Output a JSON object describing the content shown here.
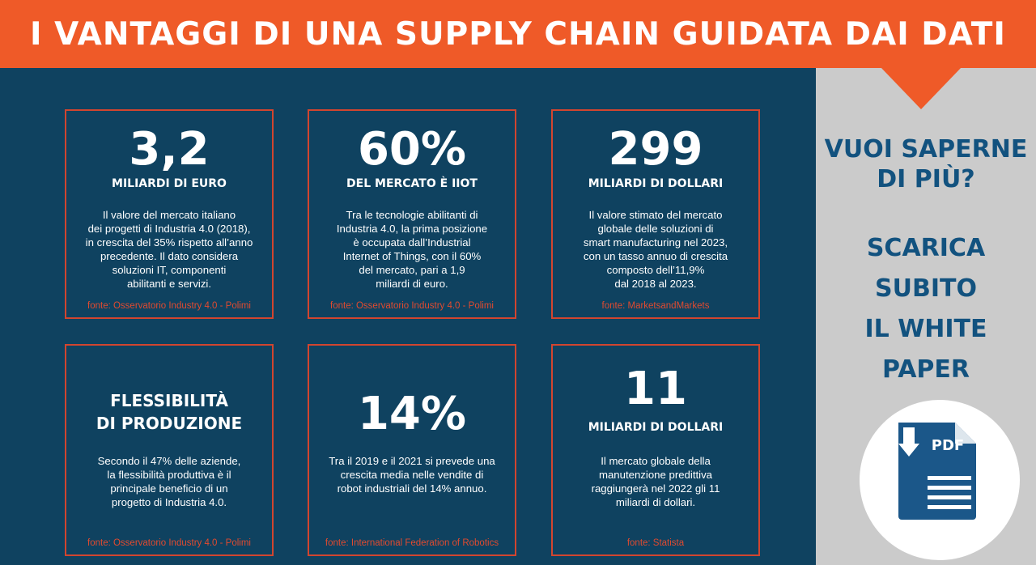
{
  "header": {
    "title": "I VANTAGGI DI UNA SUPPLY CHAIN GUIDATA DAI DATI"
  },
  "cards": [
    {
      "big": "3,2",
      "unit": "MILIARDI DI EURO",
      "desc": [
        "Il valore del mercato italiano",
        "dei progetti di Industria 4.0 (2018),",
        "in crescita del 35% rispetto all’anno",
        "precedente. Il dato considera",
        "soluzioni IT, componenti",
        "abilitanti e servizi."
      ],
      "source": "fonte: Osservatorio Industry 4.0 - Polimi"
    },
    {
      "big": "60%",
      "unit": "DEL MERCATO È IIOT",
      "desc": [
        "Tra le tecnologie abilitanti di",
        "Industria 4.0, la prima posizione",
        "è occupata dall’Industrial",
        "Internet of Things, con il 60%",
        "del mercato, pari a 1,9",
        "miliardi di euro."
      ],
      "source": "fonte: Osservatorio Industry 4.0 - Polimi"
    },
    {
      "big": "299",
      "unit": "MILIARDI DI DOLLARI",
      "desc": [
        "Il valore stimato del mercato",
        "globale delle soluzioni di",
        "smart manufacturing nel 2023,",
        "con un tasso annuo di crescita",
        "composto dell’11,9%",
        "dal 2018 al 2023."
      ],
      "source": "fonte: MarketsandMarkets"
    },
    {
      "title": [
        "FLESSIBILITÀ",
        "DI PRODUZIONE"
      ],
      "desc": [
        "Secondo il 47% delle aziende,",
        "la flessibilità produttiva è il",
        "principale beneficio di un",
        "progetto di Industria 4.0."
      ],
      "source": "fonte: Osservatorio Industry 4.0 - Polimi"
    },
    {
      "big": "14%",
      "desc": [
        "Tra il 2019 e il 2021 si prevede una",
        "crescita media nelle vendite di",
        "robot industriali del 14% annuo."
      ],
      "source": "fonte: International Federation of Robotics"
    },
    {
      "big": "11",
      "unit": "MILIARDI DI DOLLARI",
      "desc": [
        "Il mercato globale della",
        "manutenzione predittiva",
        "raggiungerà nel 2022 gli 11",
        "miliardi di dollari."
      ],
      "source": "fonte: Statista"
    }
  ],
  "sidebar": {
    "question": [
      "VUOI SAPERNE",
      "DI PIÙ?"
    ],
    "cta": [
      "SCARICA",
      "SUBITO",
      "IL WHITE",
      "PAPER"
    ],
    "button": {
      "label": "PDF",
      "icon": "pdf-download-icon"
    }
  },
  "colors": {
    "header": "#ef5a28",
    "background": "#0f4260",
    "card_border": "#d2452f",
    "source_text": "#e14a2f",
    "sidebar": "#cbcbcb",
    "sidebar_text": "#12527f",
    "pdf_icon": "#1b5789"
  }
}
